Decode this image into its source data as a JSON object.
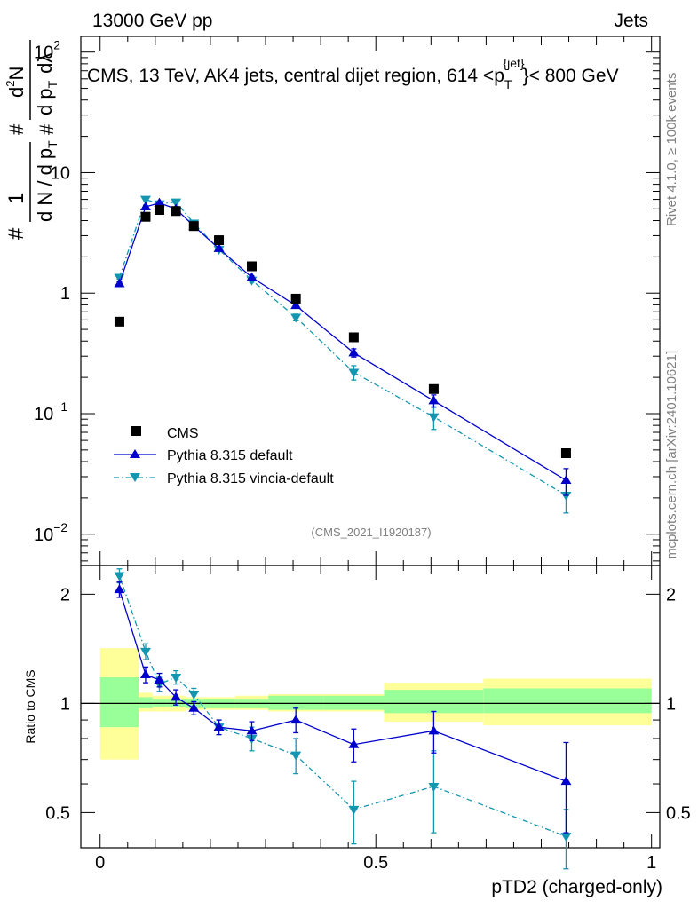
{
  "header": {
    "left": "13000 GeV pp",
    "right": "Jets",
    "title_main": "CMS, 13 TeV, AK4 jets, central dijet region, 614 <p",
    "title_sub": "T",
    "title_sup": "{jet}",
    "title_tail": "}< 800 GeV",
    "watermark_top": "Rivet 4.1.0, ≥ 100k events",
    "watermark_bottom": "mcplots.cern.ch [arXiv:2401.10621]",
    "analysis": "(CMS_2021_I1920187)"
  },
  "yaxis_upper": {
    "label_hash1": "#",
    "label_one": "1",
    "label_denom": "d N / d p",
    "label_denom_sub": "T",
    "label_hash2": "#",
    "label_hash3": "#",
    "label_num": "d",
    "label_num_sup": "2",
    "label_num2": "N",
    "label_num_d": "d p",
    "label_num_d_sub": "T",
    "label_num_dl": "dλ",
    "ticks": [
      {
        "value": 0.01,
        "base": "10",
        "exp": "−2"
      },
      {
        "value": 0.1,
        "base": "10",
        "exp": "−1"
      },
      {
        "value": 1,
        "base": "1",
        "exp": ""
      },
      {
        "value": 10,
        "base": "10",
        "exp": ""
      },
      {
        "value": 100,
        "base": "10",
        "exp": "2"
      }
    ]
  },
  "yaxis_lower": {
    "label": "Ratio to CMS",
    "ticks": [
      "0.5",
      "1",
      "2"
    ],
    "tick_values": [
      0.5,
      1,
      2
    ]
  },
  "xaxis": {
    "label": "pTD2 (charged-only)",
    "ticks": [
      "0",
      "0.5",
      "1"
    ],
    "tick_values": [
      0,
      0.5,
      1
    ]
  },
  "legend": {
    "items": [
      "CMS",
      "Pythia 8.315 default",
      "Pythia 8.315 vincia-default"
    ]
  },
  "colors": {
    "data": "#000000",
    "default": "#0000cc",
    "vincia": "#1396b0",
    "band_inner": "#99ff99",
    "band_outer": "#ffff99"
  },
  "chart_data": [
    {
      "type": "scatter",
      "name": "main",
      "title": "CMS, 13 TeV, AK4 jets, central dijet region, 614 <p_T^{jet}< 800 GeV",
      "xlabel": "pTD2 (charged-only)",
      "ylabel": "1/dN/dpT d2N/dpT dlambda",
      "yscale": "log",
      "xlim": [
        -0.035,
        1.015
      ],
      "ylim": [
        0.0055,
        135
      ],
      "series": [
        {
          "name": "CMS",
          "x": [
            0.035,
            0.0825,
            0.1075,
            0.1375,
            0.17,
            0.2155,
            0.275,
            0.355,
            0.46,
            0.605,
            0.845
          ],
          "y": [
            0.58,
            4.3,
            4.9,
            4.8,
            3.6,
            2.75,
            1.67,
            0.9,
            0.43,
            0.16,
            0.047
          ]
        },
        {
          "name": "Pythia 8.315 default",
          "x": [
            0.035,
            0.0825,
            0.1075,
            0.1375,
            0.17,
            0.2155,
            0.275,
            0.355,
            0.46,
            0.605,
            0.845
          ],
          "y": [
            1.2,
            5.2,
            5.6,
            5.0,
            3.6,
            2.35,
            1.35,
            0.79,
            0.32,
            0.128,
            0.028
          ],
          "yerr": [
            0.04,
            0.1,
            0.1,
            0.1,
            0.07,
            0.05,
            0.04,
            0.03,
            0.025,
            0.015,
            0.007
          ]
        },
        {
          "name": "Pythia 8.315 vincia-default",
          "x": [
            0.035,
            0.0825,
            0.1075,
            0.1375,
            0.17,
            0.2155,
            0.275,
            0.355,
            0.46,
            0.605,
            0.845
          ],
          "y": [
            1.35,
            6.0,
            5.5,
            5.7,
            3.8,
            2.3,
            1.28,
            0.63,
            0.22,
            0.094,
            0.021
          ],
          "yerr": [
            0.04,
            0.1,
            0.1,
            0.1,
            0.07,
            0.05,
            0.05,
            0.04,
            0.03,
            0.02,
            0.006
          ]
        }
      ]
    },
    {
      "type": "scatter",
      "name": "ratio",
      "ylabel": "Ratio to CMS",
      "yscale": "log",
      "xlim": [
        -0.035,
        1.015
      ],
      "ylim": [
        0.4,
        2.4
      ],
      "bins": [
        0,
        0.07,
        0.095,
        0.12,
        0.155,
        0.185,
        0.245,
        0.305,
        0.405,
        0.515,
        0.695,
        1.0
      ],
      "band_inner": [
        [
          0.86,
          1.18
        ],
        [
          0.97,
          1.04
        ],
        [
          0.98,
          1.03
        ],
        [
          0.98,
          1.03
        ],
        [
          0.97,
          1.03
        ],
        [
          0.97,
          1.03
        ],
        [
          0.97,
          1.03
        ],
        [
          0.96,
          1.05
        ],
        [
          0.96,
          1.05
        ],
        [
          0.94,
          1.09
        ],
        [
          0.94,
          1.1
        ]
      ],
      "band_outer": [
        [
          0.7,
          1.42
        ],
        [
          0.95,
          1.07
        ],
        [
          0.95,
          1.05
        ],
        [
          0.95,
          1.05
        ],
        [
          0.96,
          1.04
        ],
        [
          0.96,
          1.04
        ],
        [
          0.96,
          1.05
        ],
        [
          0.95,
          1.06
        ],
        [
          0.95,
          1.06
        ],
        [
          0.89,
          1.14
        ],
        [
          0.87,
          1.17
        ]
      ],
      "series": [
        {
          "name": "Pythia 8.315 default",
          "x": [
            0.035,
            0.0825,
            0.1075,
            0.1375,
            0.17,
            0.2155,
            0.275,
            0.355,
            0.46,
            0.605,
            0.845
          ],
          "y": [
            2.06,
            1.2,
            1.16,
            1.04,
            0.97,
            0.86,
            0.84,
            0.9,
            0.77,
            0.84,
            0.61
          ],
          "yerr": [
            0.1,
            0.06,
            0.05,
            0.05,
            0.04,
            0.04,
            0.05,
            0.07,
            0.08,
            0.11,
            0.17
          ]
        },
        {
          "name": "Pythia 8.315 vincia-default",
          "x": [
            0.035,
            0.0825,
            0.1075,
            0.1375,
            0.17,
            0.2155,
            0.275,
            0.355,
            0.46,
            0.605,
            0.845
          ],
          "y": [
            2.25,
            1.39,
            1.13,
            1.18,
            1.06,
            0.86,
            0.8,
            0.72,
            0.51,
            0.59,
            0.43
          ],
          "yerr": [
            0.1,
            0.07,
            0.05,
            0.05,
            0.04,
            0.04,
            0.06,
            0.08,
            0.1,
            0.15,
            0.08
          ]
        }
      ]
    }
  ]
}
